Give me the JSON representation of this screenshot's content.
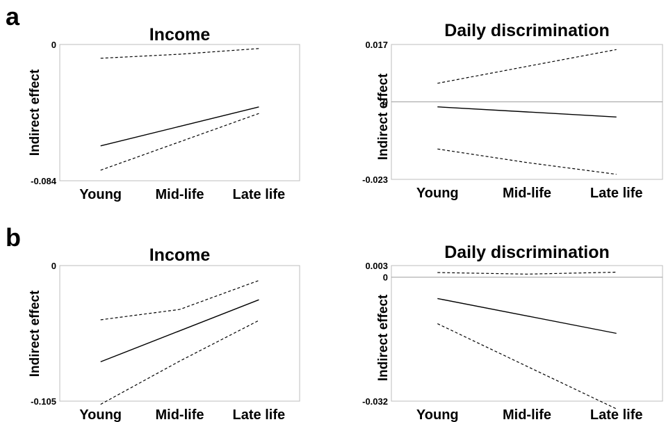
{
  "panels": [
    "a",
    "b"
  ],
  "chart_data": [
    {
      "panel": "a",
      "type": "line",
      "title": "Income",
      "xlabel": "",
      "ylabel": "Indirect effect",
      "categories": [
        "Young",
        "Mid-life",
        "Late life"
      ],
      "ylim": [
        -0.084,
        0
      ],
      "yticks": [
        "0",
        "-0.084"
      ],
      "zero_line": false,
      "series": [
        {
          "style": "solid",
          "values": [
            -0.0625,
            -0.0505,
            -0.0385
          ]
        },
        {
          "style": "dashed",
          "values": [
            -0.0085,
            -0.006,
            -0.0025
          ]
        },
        {
          "style": "dashed",
          "values": [
            -0.0775,
            -0.06,
            -0.0425
          ]
        }
      ]
    },
    {
      "panel": "a",
      "type": "line",
      "title": "Daily discrimination",
      "xlabel": "",
      "ylabel": "Indirect effect",
      "categories": [
        "Young",
        "Mid-life",
        "Late life"
      ],
      "ylim": [
        -0.023,
        0.017
      ],
      "yticks": [
        "0.017",
        "0",
        "-0.023"
      ],
      "zero_line": true,
      "series": [
        {
          "style": "solid",
          "values": [
            -0.0015,
            -0.003,
            -0.0045
          ]
        },
        {
          "style": "dashed",
          "values": [
            0.0055,
            0.0105,
            0.0155
          ]
        },
        {
          "style": "dashed",
          "values": [
            -0.014,
            -0.018,
            -0.0215
          ]
        }
      ]
    },
    {
      "panel": "b",
      "type": "line",
      "title": "Income",
      "xlabel": "",
      "ylabel": "Indirect effect",
      "categories": [
        "Young",
        "Mid-life",
        "Late life"
      ],
      "ylim": [
        -0.105,
        0
      ],
      "yticks": [
        "0",
        "-0.105"
      ],
      "zero_line": false,
      "series": [
        {
          "style": "solid",
          "values": [
            -0.0745,
            -0.0505,
            -0.0265
          ]
        },
        {
          "style": "dashed",
          "values": [
            -0.042,
            -0.034,
            -0.0115
          ]
        },
        {
          "style": "dashed",
          "values": [
            -0.1075,
            -0.074,
            -0.0425
          ]
        }
      ]
    },
    {
      "panel": "b",
      "type": "line",
      "title": "Daily discrimination",
      "xlabel": "",
      "ylabel": "Indirect effect",
      "categories": [
        "Young",
        "Mid-life",
        "Late life"
      ],
      "ylim": [
        -0.032,
        0.003
      ],
      "yticks": [
        "0.003",
        "0",
        "-0.032"
      ],
      "zero_line": true,
      "series": [
        {
          "style": "solid",
          "values": [
            -0.0055,
            -0.01,
            -0.0145
          ]
        },
        {
          "style": "dashed",
          "values": [
            0.0012,
            0.0008,
            0.0013
          ]
        },
        {
          "style": "dashed",
          "values": [
            -0.012,
            -0.023,
            -0.034
          ]
        }
      ]
    }
  ]
}
